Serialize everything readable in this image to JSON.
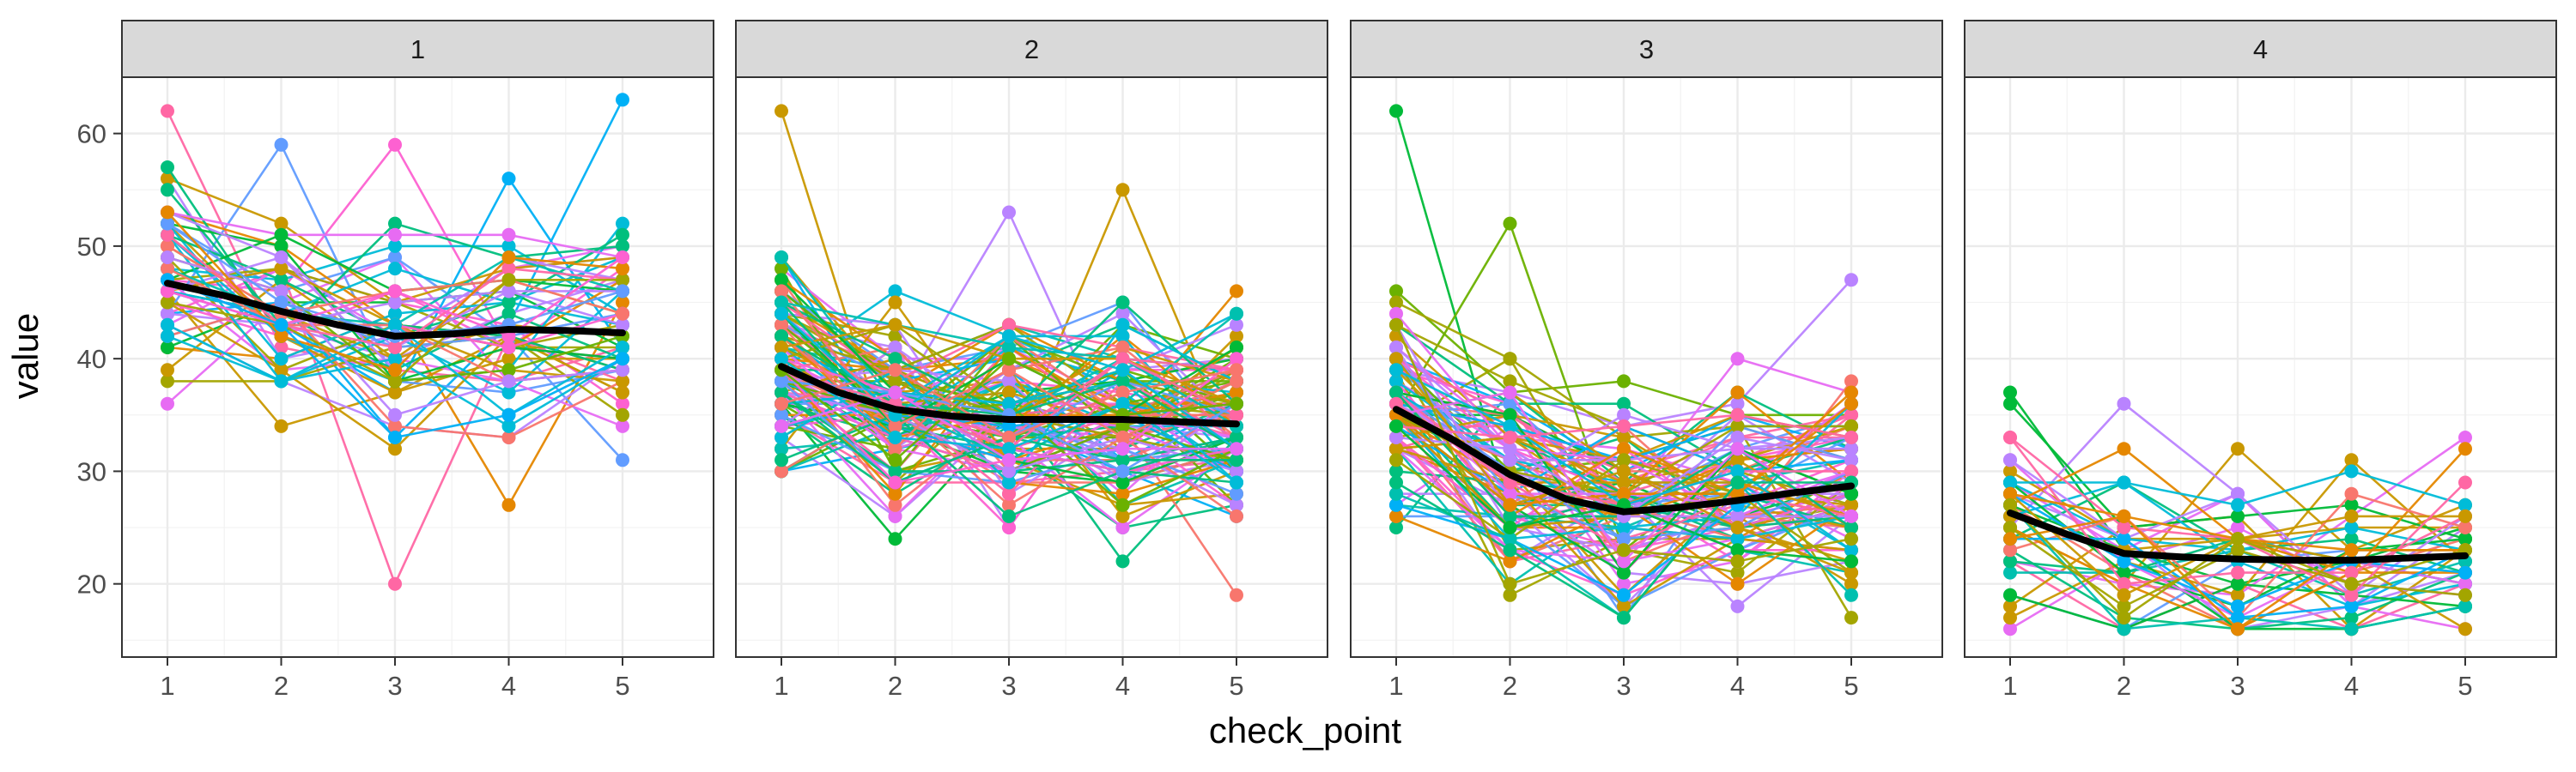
{
  "chart_data": {
    "type": "line",
    "facet_variable": "group",
    "xlabel": "check_point",
    "ylabel": "value",
    "x_ticks": [
      1,
      2,
      3,
      4,
      5
    ],
    "y_ticks": [
      20,
      30,
      40,
      50,
      60
    ],
    "ylim": [
      13.5,
      65
    ],
    "xlim": [
      0.6,
      5.8
    ],
    "grid": true,
    "theme": "bw",
    "legend": "none",
    "palette": [
      "#F8766D",
      "#E58700",
      "#C99800",
      "#A3A500",
      "#6BB100",
      "#00BA38",
      "#00BF7D",
      "#00C0AF",
      "#00BCD8",
      "#00B0F6",
      "#619CFF",
      "#B983FF",
      "#E76BF3",
      "#FD61D1",
      "#FF67A4"
    ],
    "smooth_color": "#000000",
    "panels": [
      {
        "label": "1",
        "subjects": 60,
        "observed_range": {
          "1": [
            36,
            62
          ],
          "2": [
            34,
            59
          ],
          "3": [
            20,
            59
          ],
          "4": [
            27,
            56
          ],
          "5": [
            31,
            63
          ]
        },
        "smooth": {
          "x": [
            1,
            1.5,
            2,
            2.5,
            3,
            3.5,
            4,
            4.5,
            5
          ],
          "y": [
            46.7,
            45.6,
            44.2,
            43.0,
            42.0,
            42.2,
            42.6,
            42.5,
            42.3
          ]
        }
      },
      {
        "label": "2",
        "subjects": 120,
        "observed_range": {
          "1": [
            30,
            62
          ],
          "2": [
            24,
            46
          ],
          "3": [
            25,
            53
          ],
          "4": [
            22,
            55
          ],
          "5": [
            19,
            46
          ]
        },
        "smooth": {
          "x": [
            1,
            1.5,
            2,
            2.5,
            3,
            3.5,
            4,
            4.5,
            5
          ],
          "y": [
            39.3,
            37.0,
            35.5,
            34.9,
            34.6,
            34.6,
            34.6,
            34.4,
            34.2
          ]
        }
      },
      {
        "label": "3",
        "subjects": 100,
        "observed_range": {
          "1": [
            25,
            62
          ],
          "2": [
            19,
            52
          ],
          "3": [
            17,
            38
          ],
          "4": [
            18,
            40
          ],
          "5": [
            17,
            47
          ]
        },
        "smooth": {
          "x": [
            1,
            1.5,
            2,
            2.5,
            3,
            3.5,
            4,
            4.5,
            5
          ],
          "y": [
            35.5,
            32.8,
            29.7,
            27.5,
            26.4,
            26.8,
            27.4,
            28.1,
            28.7
          ]
        }
      },
      {
        "label": "4",
        "subjects": 40,
        "observed_range": {
          "1": [
            16,
            37
          ],
          "2": [
            16,
            36
          ],
          "3": [
            16,
            32
          ],
          "4": [
            16,
            31
          ],
          "5": [
            16,
            33
          ]
        },
        "smooth": {
          "x": [
            1,
            1.5,
            2,
            2.5,
            3,
            3.5,
            4,
            4.5,
            5
          ],
          "y": [
            26.3,
            24.4,
            22.7,
            22.4,
            22.2,
            22.1,
            22.1,
            22.3,
            22.5
          ]
        }
      }
    ]
  }
}
